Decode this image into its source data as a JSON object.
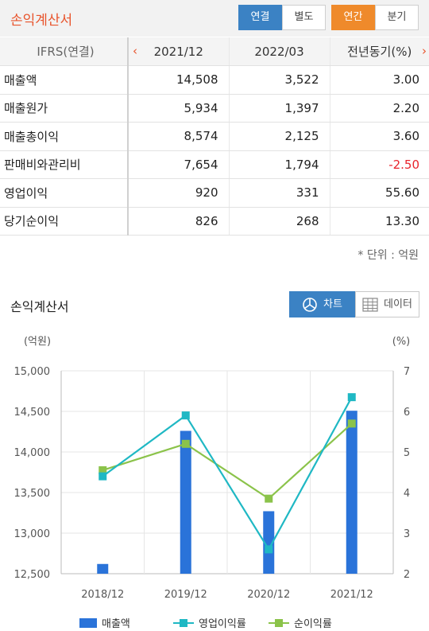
{
  "header": {
    "title": "손익계산서",
    "seg1": [
      "연결",
      "별도"
    ],
    "seg2": [
      "연간",
      "분기"
    ]
  },
  "table": {
    "headers": [
      "IFRS(연결)",
      "2021/12",
      "2022/03",
      "전년동기(%)"
    ],
    "rows": [
      [
        "매출액",
        "14,508",
        "3,522",
        "3.00"
      ],
      [
        "매출원가",
        "5,934",
        "1,397",
        "2.20"
      ],
      [
        "매출총이익",
        "8,574",
        "2,125",
        "3.60"
      ],
      [
        "판매비와관리비",
        "7,654",
        "1,794",
        "-2.50"
      ],
      [
        "영업이익",
        "920",
        "331",
        "55.60"
      ],
      [
        "당기순이익",
        "826",
        "268",
        "13.30"
      ]
    ],
    "negative_color": "#e8242c"
  },
  "unit_note": "* 단위 : 억원",
  "chart_section": {
    "title": "손익계산서",
    "chart_label": "차트",
    "data_label": "데이터"
  },
  "colors": {
    "accent_orange": "#e8542c",
    "active_blue": "#3b82c4",
    "active_orange": "#ef8a2b",
    "bar": "#2a73d9",
    "line_op": "#1fb8c4",
    "line_net": "#8bc34a"
  },
  "chart_data": {
    "type": "bar",
    "categories": [
      "2018/12",
      "2019/12",
      "2020/12",
      "2021/12"
    ],
    "series": [
      {
        "name": "매출액",
        "type": "bar",
        "axis": "left",
        "values": [
          12620,
          14260,
          13270,
          14508
        ]
      },
      {
        "name": "영업이익률",
        "type": "line",
        "axis": "right",
        "values": [
          4.4,
          5.9,
          2.6,
          6.35
        ]
      },
      {
        "name": "순이익률",
        "type": "line",
        "axis": "right",
        "values": [
          4.55,
          5.2,
          3.85,
          5.7
        ]
      }
    ],
    "ylabel_left": "(억원)",
    "ylabel_right": "(%)",
    "ylim_left": [
      12500,
      15000
    ],
    "ylim_right": [
      2,
      7
    ],
    "yticks_left": [
      "12,500",
      "13,000",
      "13,500",
      "14,000",
      "14,500",
      "15,000"
    ],
    "yticks_right": [
      "2",
      "3",
      "4",
      "5",
      "6",
      "7"
    ],
    "grid": true,
    "legend": "bottom"
  }
}
